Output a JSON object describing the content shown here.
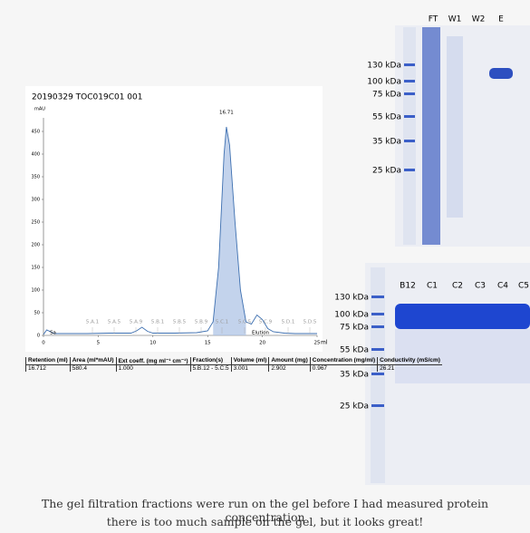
{
  "chart_data": {
    "type": "line",
    "title": "20190329 TOC019C01 001",
    "y_label": "mAU",
    "x_label": "ml",
    "x": [
      0,
      0.3,
      1,
      2,
      4,
      6,
      8,
      8.5,
      9,
      9.5,
      10,
      12,
      14,
      15,
      15.5,
      16,
      16.5,
      16.71,
      17,
      17.5,
      18,
      18.5,
      19,
      19.5,
      20,
      20.5,
      21,
      22,
      23,
      25
    ],
    "series": [
      {
        "color": "#3d6fb0",
        "values": [
          2,
          12,
          4,
          4,
          4,
          5,
          5,
          10,
          18,
          9,
          5,
          5,
          6,
          10,
          30,
          150,
          400,
          460,
          420,
          250,
          100,
          30,
          25,
          45,
          35,
          15,
          8,
          5,
          4,
          4
        ]
      }
    ],
    "xlim": [
      0,
      25
    ],
    "xticks": [
      0,
      5,
      10,
      15,
      20,
      25
    ],
    "ylim": [
      0,
      480
    ],
    "yticks": [
      0,
      50,
      100,
      150,
      200,
      250,
      300,
      350,
      400,
      450
    ],
    "peak_label": "16.71",
    "fraction_labels": [
      "5.A.1",
      "5.A.5",
      "5.A.9",
      "5.B.1",
      "5.B.5",
      "5.B.9",
      "5.C.1",
      "5.C.5",
      "5.C.9",
      "5.D.1",
      "5.D.5"
    ],
    "region_labels": [
      "Sa",
      "Elution"
    ]
  },
  "table": {
    "header": [
      "Retention (ml)",
      "Area (ml*mAU)",
      "Ext coeff. (mg ml⁻¹ cm⁻¹)",
      "Fraction(s)",
      "Volume (ml)",
      "Amount (mg)",
      "Concentration (mg/ml)",
      "Conductivity (mS/cm)"
    ],
    "rows": [
      [
        "16.712",
        "580.4",
        "1.000",
        "5.B.12 - 5.C.5",
        "3.001",
        "2.902",
        "0.967",
        "26.21"
      ]
    ]
  },
  "gel1": {
    "lanes": [
      "FT",
      "W1",
      "W2",
      "E"
    ],
    "markers": [
      "130 kDa",
      "100 kDa",
      "75 kDa",
      "55 kDa",
      "35 kDa",
      "25 kDa"
    ]
  },
  "gel2": {
    "lanes": [
      "B12",
      "C1",
      "C2",
      "C3",
      "C4",
      "C5"
    ],
    "markers": [
      "130 kDa",
      "100 kDa",
      "75 kDa",
      "55 kDa",
      "35 kDa",
      "25 kDa"
    ]
  },
  "caption": [
    "The gel filtration fractions were run on the gel before I had measured protein concentration",
    "there is too much sample on the gel, but it looks great!"
  ]
}
